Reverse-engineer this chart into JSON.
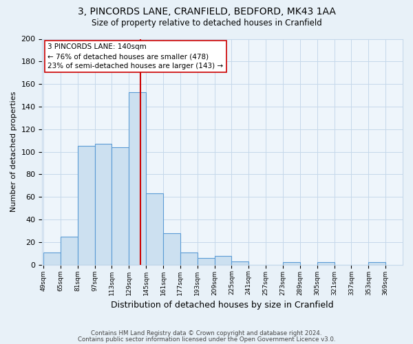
{
  "title": "3, PINCORDS LANE, CRANFIELD, BEDFORD, MK43 1AA",
  "subtitle": "Size of property relative to detached houses in Cranfield",
  "xlabel": "Distribution of detached houses by size in Cranfield",
  "ylabel": "Number of detached properties",
  "bar_left_edges": [
    49,
    65,
    81,
    97,
    113,
    129,
    145,
    161,
    177,
    193,
    209,
    225,
    241,
    257,
    273,
    289,
    305,
    321,
    337,
    353
  ],
  "bar_heights": [
    11,
    25,
    105,
    107,
    104,
    153,
    63,
    28,
    11,
    6,
    8,
    3,
    0,
    0,
    2,
    0,
    2,
    0,
    0,
    2
  ],
  "bin_width": 16,
  "bar_color": "#cce0f0",
  "bar_edge_color": "#5b9bd5",
  "vline_x": 140,
  "vline_color": "#cc0000",
  "ylim": [
    0,
    200
  ],
  "yticks": [
    0,
    20,
    40,
    60,
    80,
    100,
    120,
    140,
    160,
    180,
    200
  ],
  "xtick_labels": [
    "49sqm",
    "65sqm",
    "81sqm",
    "97sqm",
    "113sqm",
    "129sqm",
    "145sqm",
    "161sqm",
    "177sqm",
    "193sqm",
    "209sqm",
    "225sqm",
    "241sqm",
    "257sqm",
    "273sqm",
    "289sqm",
    "305sqm",
    "321sqm",
    "337sqm",
    "353sqm",
    "369sqm"
  ],
  "box_text_line1": "3 PINCORDS LANE: 140sqm",
  "box_text_line2": "← 76% of detached houses are smaller (478)",
  "box_text_line3": "23% of semi-detached houses are larger (143) →",
  "footer_line1": "Contains HM Land Registry data © Crown copyright and database right 2024.",
  "footer_line2": "Contains public sector information licensed under the Open Government Licence v3.0.",
  "bg_color": "#e8f1f8",
  "plot_bg_color": "#eef5fb",
  "grid_color": "#c5d8ea"
}
